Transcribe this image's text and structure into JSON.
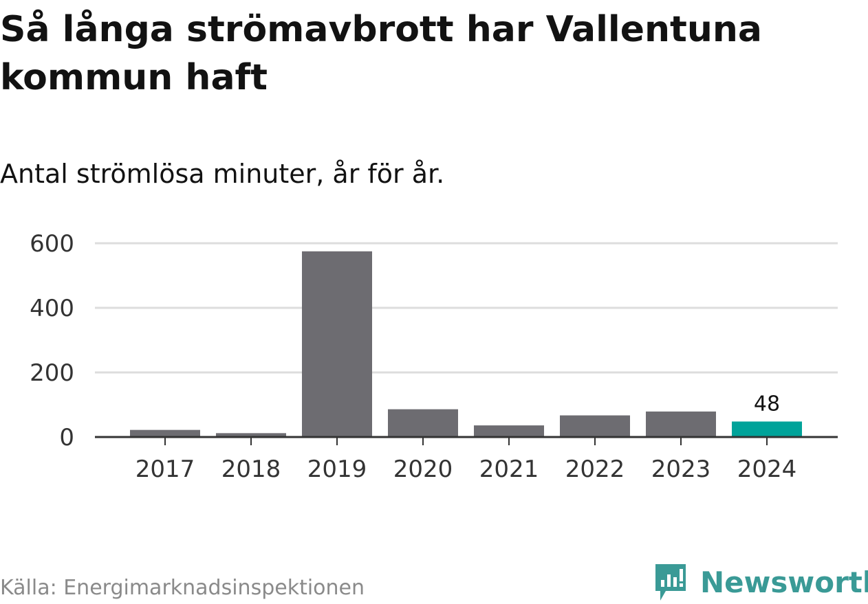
{
  "title": "Så långa strömavbrott har Vallentuna kommun haft",
  "subtitle": "Antal strömlösa minuter, år för år.",
  "source": "Källa: Energimarknadsinspektionen",
  "brand": {
    "name": "Newsworthy",
    "color": "#3a9a96",
    "icon": "bar-chart-speech-bubble-icon"
  },
  "colors": {
    "bar": "#6d6c71",
    "highlight": "#00a39a",
    "grid": "#dddddd",
    "axis": "#333333",
    "text": "#121212",
    "tick_text": "#333333"
  },
  "chart_data": {
    "type": "bar",
    "categories": [
      "2017",
      "2018",
      "2019",
      "2020",
      "2021",
      "2022",
      "2023",
      "2024"
    ],
    "values": [
      22,
      12,
      575,
      86,
      36,
      67,
      79,
      48
    ],
    "highlight_index": 7,
    "data_labels": [
      {
        "index": 7,
        "text": "48"
      }
    ],
    "y_ticks": [
      0,
      200,
      400,
      600
    ],
    "ylim": [
      0,
      600
    ],
    "grid": true,
    "title": "Så långa strömavbrott har Vallentuna kommun haft",
    "subtitle": "Antal strömlösa minuter, år för år.",
    "xlabel": "",
    "ylabel": ""
  }
}
